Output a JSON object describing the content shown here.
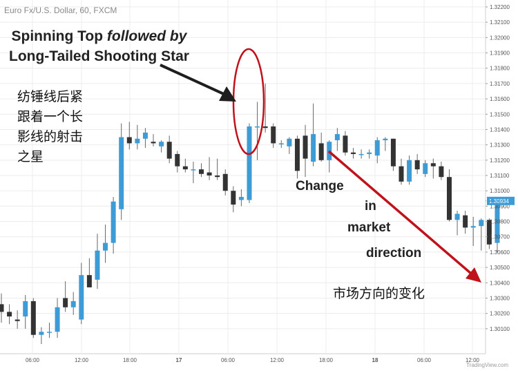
{
  "chart_title": "Euro Fx/U.S. Dollar, 60, FXCM",
  "annotations": {
    "line1_bold": "Spinning Top",
    "line1_italic": "followed by",
    "line2": "Long-Tailed Shooting Star",
    "chinese_left_1": "纺锤线后紧",
    "chinese_left_2": "跟着一个长",
    "chinese_left_3": "影线的射击",
    "chinese_left_4": "之星",
    "change_1": "Change",
    "change_2": "in",
    "change_3": "market",
    "change_4": "direction",
    "chinese_right": "市场方向的变化"
  },
  "watermark": "TradingView.com",
  "colors": {
    "bull": "#3d9bd6",
    "bear": "#333333",
    "ellipse": "#c0121a",
    "arrow_red": "#c0121a",
    "arrow_black": "#1e1e1e",
    "last_price_bg": "#3d9bd6"
  },
  "chart_data": {
    "type": "candlestick",
    "title": "Euro Fx/U.S. Dollar, 60, FXCM",
    "ylim": [
      1.3,
      1.322
    ],
    "y_ticks": [
      "1.32200",
      "1.32100",
      "1.32000",
      "1.31900",
      "1.31800",
      "1.31700",
      "1.31600",
      "1.31500",
      "1.31400",
      "1.31300",
      "1.31200",
      "1.31100",
      "1.31000",
      "1.30900",
      "1.30800",
      "1.30700",
      "1.30600",
      "1.30500",
      "1.30400",
      "1.30300",
      "1.30200",
      "1.30100"
    ],
    "x_ticks": [
      "06:00",
      "12:00",
      "18:00",
      "17",
      "06:00",
      "12:00",
      "18:00",
      "18",
      "06:00",
      "12:00"
    ],
    "last_price": "1.30934",
    "candles": [
      {
        "o": 1.3026,
        "h": 1.3033,
        "l": 1.3014,
        "c": 1.3021
      },
      {
        "o": 1.3021,
        "h": 1.3026,
        "l": 1.3013,
        "c": 1.3018
      },
      {
        "o": 1.3016,
        "h": 1.3022,
        "l": 1.301,
        "c": 1.3015
      },
      {
        "o": 1.3018,
        "h": 1.3032,
        "l": 1.301,
        "c": 1.3028
      },
      {
        "o": 1.3028,
        "h": 1.303,
        "l": 1.3004,
        "c": 1.3006
      },
      {
        "o": 1.3006,
        "h": 1.3011,
        "l": 1.3,
        "c": 1.3008
      },
      {
        "o": 1.3008,
        "h": 1.3014,
        "l": 1.3004,
        "c": 1.3008
      },
      {
        "o": 1.3008,
        "h": 1.303,
        "l": 1.3004,
        "c": 1.3024
      },
      {
        "o": 1.303,
        "h": 1.3041,
        "l": 1.3021,
        "c": 1.3024
      },
      {
        "o": 1.3024,
        "h": 1.3034,
        "l": 1.3019,
        "c": 1.3028
      },
      {
        "o": 1.3016,
        "h": 1.3053,
        "l": 1.3013,
        "c": 1.3045
      },
      {
        "o": 1.3045,
        "h": 1.3056,
        "l": 1.3037,
        "c": 1.3037
      },
      {
        "o": 1.3042,
        "h": 1.3072,
        "l": 1.3036,
        "c": 1.3061
      },
      {
        "o": 1.3061,
        "h": 1.3078,
        "l": 1.3053,
        "c": 1.3066
      },
      {
        "o": 1.3066,
        "h": 1.3096,
        "l": 1.3059,
        "c": 1.3093
      },
      {
        "o": 1.3088,
        "h": 1.3144,
        "l": 1.3081,
        "c": 1.3135
      },
      {
        "o": 1.3135,
        "h": 1.3145,
        "l": 1.3127,
        "c": 1.3131
      },
      {
        "o": 1.3131,
        "h": 1.3143,
        "l": 1.3127,
        "c": 1.3134
      },
      {
        "o": 1.3134,
        "h": 1.3141,
        "l": 1.3128,
        "c": 1.3138
      },
      {
        "o": 1.3132,
        "h": 1.3137,
        "l": 1.3129,
        "c": 1.3131
      },
      {
        "o": 1.3129,
        "h": 1.3133,
        "l": 1.3125,
        "c": 1.3132
      },
      {
        "o": 1.3132,
        "h": 1.3136,
        "l": 1.3118,
        "c": 1.3121
      },
      {
        "o": 1.3124,
        "h": 1.3126,
        "l": 1.3112,
        "c": 1.3116
      },
      {
        "o": 1.3116,
        "h": 1.3121,
        "l": 1.3112,
        "c": 1.3114
      },
      {
        "o": 1.3114,
        "h": 1.3119,
        "l": 1.3105,
        "c": 1.3114
      },
      {
        "o": 1.3114,
        "h": 1.3118,
        "l": 1.3109,
        "c": 1.3111
      },
      {
        "o": 1.3112,
        "h": 1.3122,
        "l": 1.3107,
        "c": 1.311
      },
      {
        "o": 1.311,
        "h": 1.3121,
        "l": 1.3107,
        "c": 1.3109
      },
      {
        "o": 1.3111,
        "h": 1.3114,
        "l": 1.3097,
        "c": 1.31
      },
      {
        "o": 1.31,
        "h": 1.3103,
        "l": 1.3086,
        "c": 1.3091
      },
      {
        "o": 1.3094,
        "h": 1.3101,
        "l": 1.309,
        "c": 1.3096
      },
      {
        "o": 1.3094,
        "h": 1.3144,
        "l": 1.3092,
        "c": 1.3142
      },
      {
        "o": 1.3142,
        "h": 1.3158,
        "l": 1.312,
        "c": 1.3142
      },
      {
        "o": 1.3142,
        "h": 1.317,
        "l": 1.3138,
        "c": 1.3141
      },
      {
        "o": 1.3142,
        "h": 1.3144,
        "l": 1.3128,
        "c": 1.3131
      },
      {
        "o": 1.3131,
        "h": 1.3133,
        "l": 1.3128,
        "c": 1.3131
      },
      {
        "o": 1.3129,
        "h": 1.3135,
        "l": 1.3124,
        "c": 1.3134
      },
      {
        "o": 1.3134,
        "h": 1.3136,
        "l": 1.3108,
        "c": 1.3113
      },
      {
        "o": 1.3136,
        "h": 1.3143,
        "l": 1.3109,
        "c": 1.3121
      },
      {
        "o": 1.3119,
        "h": 1.3157,
        "l": 1.3116,
        "c": 1.3137
      },
      {
        "o": 1.3131,
        "h": 1.3138,
        "l": 1.3119,
        "c": 1.312
      },
      {
        "o": 1.312,
        "h": 1.3133,
        "l": 1.3112,
        "c": 1.3132
      },
      {
        "o": 1.3133,
        "h": 1.3141,
        "l": 1.3126,
        "c": 1.3137
      },
      {
        "o": 1.3136,
        "h": 1.3139,
        "l": 1.3123,
        "c": 1.3125
      },
      {
        "o": 1.3125,
        "h": 1.3128,
        "l": 1.3121,
        "c": 1.3124
      },
      {
        "o": 1.3124,
        "h": 1.3127,
        "l": 1.3121,
        "c": 1.3124
      },
      {
        "o": 1.3124,
        "h": 1.3127,
        "l": 1.3121,
        "c": 1.3125
      },
      {
        "o": 1.3123,
        "h": 1.3135,
        "l": 1.3118,
        "c": 1.3133
      },
      {
        "o": 1.3133,
        "h": 1.3135,
        "l": 1.3126,
        "c": 1.3134
      },
      {
        "o": 1.3134,
        "h": 1.3134,
        "l": 1.3113,
        "c": 1.3116
      },
      {
        "o": 1.3116,
        "h": 1.3121,
        "l": 1.3104,
        "c": 1.3106
      },
      {
        "o": 1.3106,
        "h": 1.3123,
        "l": 1.3104,
        "c": 1.312
      },
      {
        "o": 1.312,
        "h": 1.3124,
        "l": 1.3111,
        "c": 1.3114
      },
      {
        "o": 1.3111,
        "h": 1.312,
        "l": 1.3109,
        "c": 1.3118
      },
      {
        "o": 1.3118,
        "h": 1.3121,
        "l": 1.3108,
        "c": 1.3116
      },
      {
        "o": 1.3116,
        "h": 1.3119,
        "l": 1.3107,
        "c": 1.3109
      },
      {
        "o": 1.3109,
        "h": 1.3114,
        "l": 1.308,
        "c": 1.3081
      },
      {
        "o": 1.3081,
        "h": 1.3087,
        "l": 1.3071,
        "c": 1.3085
      },
      {
        "o": 1.3084,
        "h": 1.3087,
        "l": 1.3072,
        "c": 1.3076
      },
      {
        "o": 1.3076,
        "h": 1.3083,
        "l": 1.3064,
        "c": 1.3077
      },
      {
        "o": 1.3077,
        "h": 1.3082,
        "l": 1.3061,
        "c": 1.3081
      },
      {
        "o": 1.3081,
        "h": 1.3082,
        "l": 1.3062,
        "c": 1.3065
      },
      {
        "o": 1.3066,
        "h": 1.3096,
        "l": 1.306,
        "c": 1.3093
      }
    ]
  }
}
